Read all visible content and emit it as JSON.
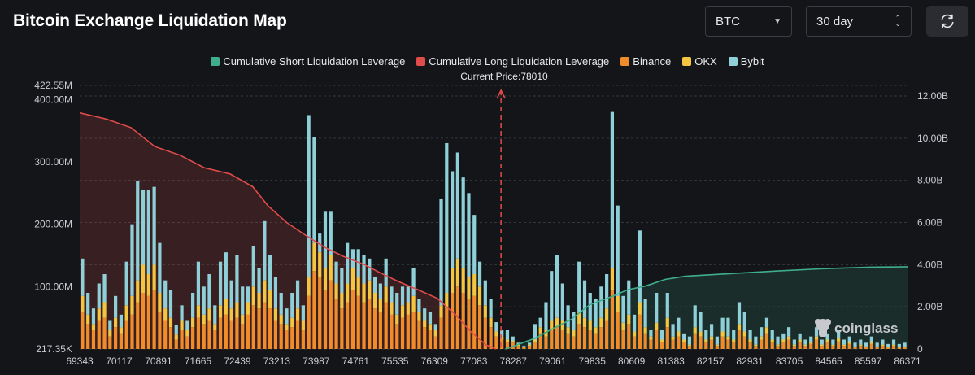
{
  "header": {
    "title": "Bitcoin Exchange Liquidation Map",
    "symbol_select": "BTC",
    "period_select": "30 day"
  },
  "colors": {
    "background": "#141518",
    "short_line": "#3fae8c",
    "long_line": "#e04b4b",
    "binance": "#f08c2a",
    "okx": "#f3c541",
    "bybit": "#8ecfd8"
  },
  "watermark": "coinglass",
  "chart_data": {
    "type": "bar",
    "legend": [
      "Cumulative Short Liquidation Leverage",
      "Cumulative Long Liquidation Leverage",
      "Binance",
      "OKX",
      "Bybit"
    ],
    "legend_position": "top-center",
    "annotation": "Current Price:78010",
    "current_price": 78010,
    "x_tick_labels": [
      "69343",
      "70117",
      "70891",
      "71665",
      "72439",
      "73213",
      "73987",
      "74761",
      "75535",
      "76309",
      "77083",
      "78287",
      "79061",
      "79835",
      "80609",
      "81383",
      "82157",
      "82931",
      "83705",
      "84565",
      "85597",
      "86371"
    ],
    "xlim": [
      69343,
      86371
    ],
    "y_left_tick_labels": [
      "422.55M",
      "400.00M",
      "300.00M",
      "200.00M",
      "100.00M",
      "217.35K"
    ],
    "y_left_range": [
      217350,
      422550000
    ],
    "y_right_tick_labels": [
      "12.00B",
      "10.00B",
      "8.00B",
      "6.00B",
      "4.00B",
      "2.00B",
      "0"
    ],
    "y_right_range": [
      0,
      12000000000
    ],
    "bar_series_million_usd": [
      {
        "name": "Binance",
        "values": [
          60,
          40,
          30,
          45,
          50,
          20,
          35,
          25,
          45,
          55,
          75,
          90,
          85,
          95,
          60,
          45,
          35,
          15,
          30,
          20,
          35,
          50,
          40,
          45,
          30,
          50,
          55,
          45,
          50,
          40,
          55,
          70,
          65,
          75,
          65,
          45,
          40,
          30,
          35,
          45,
          30,
          85,
          125,
          115,
          95,
          110,
          80,
          65,
          75,
          95,
          85,
          75,
          80,
          65,
          60,
          75,
          55,
          40,
          50,
          55,
          60,
          45,
          35,
          30,
          20,
          50,
          65,
          90,
          100,
          90,
          80,
          85,
          70,
          50,
          35,
          20,
          15,
          10,
          10,
          5,
          3,
          5,
          10,
          25,
          20,
          30,
          35,
          30,
          25,
          20,
          40,
          35,
          30,
          25,
          35,
          45,
          95,
          60,
          30,
          40,
          20,
          55,
          25,
          15,
          30,
          10,
          35,
          15,
          20,
          10,
          5,
          25,
          20,
          10,
          15,
          5,
          20,
          15,
          10,
          30,
          20,
          10,
          5,
          15,
          25,
          10,
          5,
          10,
          15,
          5,
          10,
          5,
          8,
          15,
          5,
          10,
          5,
          12,
          5,
          8,
          3,
          5,
          3,
          8,
          3,
          5,
          2,
          5,
          2,
          3
        ]
      },
      {
        "name": "OKX",
        "values": [
          25,
          15,
          10,
          20,
          25,
          10,
          15,
          10,
          25,
          30,
          35,
          45,
          35,
          40,
          30,
          20,
          15,
          8,
          15,
          10,
          15,
          20,
          15,
          20,
          10,
          20,
          25,
          20,
          25,
          15,
          20,
          30,
          25,
          35,
          30,
          20,
          15,
          10,
          15,
          20,
          15,
          30,
          45,
          40,
          35,
          40,
          25,
          25,
          30,
          35,
          30,
          30,
          30,
          25,
          20,
          25,
          20,
          15,
          20,
          20,
          25,
          15,
          10,
          10,
          10,
          20,
          25,
          40,
          45,
          40,
          35,
          35,
          30,
          20,
          15,
          8,
          5,
          5,
          3,
          2,
          1,
          2,
          5,
          10,
          10,
          15,
          15,
          15,
          10,
          10,
          20,
          15,
          15,
          10,
          15,
          20,
          35,
          25,
          12,
          15,
          8,
          20,
          10,
          5,
          12,
          5,
          15,
          5,
          8,
          5,
          2,
          10,
          8,
          5,
          5,
          2,
          8,
          5,
          5,
          10,
          8,
          5,
          2,
          5,
          10,
          5,
          2,
          5,
          5,
          2,
          5,
          2,
          3,
          5,
          2,
          5,
          2,
          5,
          2,
          3,
          1,
          2,
          1,
          3,
          1,
          2,
          1,
          2,
          1,
          1
        ]
      },
      {
        "name": "Bybit",
        "values": [
          60,
          35,
          25,
          40,
          45,
          15,
          35,
          20,
          70,
          115,
          160,
          120,
          135,
          125,
          80,
          45,
          45,
          15,
          25,
          15,
          40,
          70,
          45,
          55,
          30,
          70,
          75,
          45,
          75,
          45,
          25,
          65,
          40,
          95,
          55,
          50,
          35,
          25,
          40,
          45,
          25,
          260,
          170,
          30,
          90,
          70,
          35,
          40,
          65,
          30,
          45,
          45,
          35,
          25,
          25,
          45,
          25,
          35,
          30,
          25,
          45,
          20,
          20,
          20,
          10,
          170,
          240,
          155,
          170,
          145,
          135,
          95,
          40,
          40,
          30,
          15,
          10,
          15,
          7,
          3,
          1,
          3,
          25,
          15,
          45,
          80,
          100,
          60,
          35,
          30,
          80,
          60,
          45,
          45,
          50,
          55,
          250,
          145,
          43,
          55,
          27,
          115,
          45,
          10,
          48,
          15,
          40,
          20,
          22,
          10,
          13,
          35,
          32,
          15,
          20,
          13,
          22,
          30,
          15,
          35,
          32,
          15,
          13,
          15,
          15,
          15,
          13,
          10,
          15,
          8,
          10,
          8,
          9,
          15,
          8,
          10,
          8,
          13,
          8,
          9,
          6,
          8,
          6,
          9,
          6,
          8,
          5,
          8,
          5,
          6
        ]
      }
    ],
    "cumulative_long_billion_usd": [
      {
        "x": 69343,
        "y": 11.2
      },
      {
        "x": 69900,
        "y": 10.9
      },
      {
        "x": 70400,
        "y": 10.5
      },
      {
        "x": 70891,
        "y": 9.6
      },
      {
        "x": 71400,
        "y": 9.2
      },
      {
        "x": 71900,
        "y": 8.6
      },
      {
        "x": 72439,
        "y": 8.3
      },
      {
        "x": 72900,
        "y": 7.7
      },
      {
        "x": 73213,
        "y": 6.8
      },
      {
        "x": 73600,
        "y": 6.0
      },
      {
        "x": 73987,
        "y": 5.4
      },
      {
        "x": 74400,
        "y": 4.8
      },
      {
        "x": 74761,
        "y": 4.4
      },
      {
        "x": 75200,
        "y": 4.0
      },
      {
        "x": 75535,
        "y": 3.6
      },
      {
        "x": 75900,
        "y": 3.2
      },
      {
        "x": 76309,
        "y": 2.8
      },
      {
        "x": 76700,
        "y": 2.4
      },
      {
        "x": 77083,
        "y": 1.6
      },
      {
        "x": 77400,
        "y": 0.8
      },
      {
        "x": 77700,
        "y": 0.2
      },
      {
        "x": 77900,
        "y": 0.0
      }
    ],
    "cumulative_short_billion_usd": [
      {
        "x": 78100,
        "y": 0.0
      },
      {
        "x": 78287,
        "y": 0.15
      },
      {
        "x": 78700,
        "y": 0.5
      },
      {
        "x": 79061,
        "y": 0.95
      },
      {
        "x": 79450,
        "y": 1.4
      },
      {
        "x": 79835,
        "y": 2.1
      },
      {
        "x": 80300,
        "y": 2.5
      },
      {
        "x": 80609,
        "y": 2.8
      },
      {
        "x": 81000,
        "y": 3.0
      },
      {
        "x": 81383,
        "y": 3.3
      },
      {
        "x": 81800,
        "y": 3.45
      },
      {
        "x": 82157,
        "y": 3.5
      },
      {
        "x": 82931,
        "y": 3.6
      },
      {
        "x": 83705,
        "y": 3.7
      },
      {
        "x": 84565,
        "y": 3.8
      },
      {
        "x": 85597,
        "y": 3.88
      },
      {
        "x": 86371,
        "y": 3.9
      }
    ]
  }
}
